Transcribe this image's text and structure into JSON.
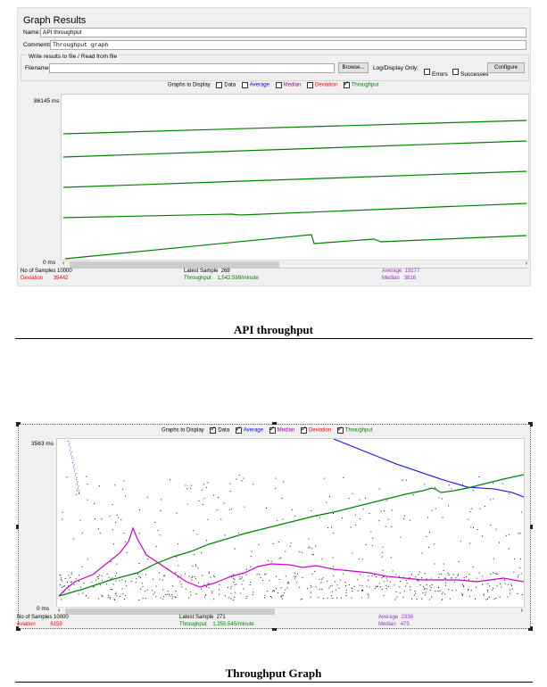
{
  "figure1": {
    "panel_title": "Graph Results",
    "name_label": "Name:",
    "name_value": "API throughput",
    "comments_label": "Comments:",
    "comments_value": "Throughput graph",
    "write_results_label": "Write results to file / Read from file",
    "filename_label": "Filename",
    "filename_value": "",
    "browse_button": "Browse...",
    "log_display_label": "Log/Display Only:",
    "errors_label": "Errors",
    "successes_label": "Successes",
    "configure_button": "Configure",
    "graphs_to_display_label": "Graphs to Display",
    "legend": [
      {
        "label": "Data",
        "checked": false,
        "color": "#000000"
      },
      {
        "label": "Average",
        "checked": false,
        "color": "#0000ff"
      },
      {
        "label": "Median",
        "checked": false,
        "color": "#990099"
      },
      {
        "label": "Deviation",
        "checked": false,
        "color": "#ff0000"
      },
      {
        "label": "Throughput",
        "checked": true,
        "color": "#008000"
      }
    ],
    "y_max_label": "86145  ms",
    "y_min_label": "0  ms",
    "stats": {
      "samples_label": "No of Samples",
      "samples_value": "10000",
      "deviation_label": "Deviation",
      "deviation_value": "35442",
      "latest_label": "Latest Sample",
      "latest_value": "268",
      "throughput_label": "Throughput",
      "throughput_value": "1,542.599/minute",
      "average_label": "Average",
      "average_value": "19277",
      "median_label": "Median",
      "median_value": "3816"
    },
    "caption": "API throughput"
  },
  "figure2": {
    "graphs_to_display_label": "Graphs to Display",
    "legend": [
      {
        "label": "Data",
        "checked": true,
        "color": "#000000"
      },
      {
        "label": "Average",
        "checked": true,
        "color": "#0000ff"
      },
      {
        "label": "Median",
        "checked": true,
        "color": "#990099"
      },
      {
        "label": "Deviation",
        "checked": true,
        "color": "#ff0000"
      },
      {
        "label": "Throughput",
        "checked": true,
        "color": "#008000"
      }
    ],
    "y_max_label": "3563  ms",
    "y_min_label": "0  ms",
    "stats": {
      "samples_label": "No of Samples",
      "samples_value": "10000",
      "deviation_label": "eviation",
      "deviation_value": "6159",
      "latest_label": "Latest Sample",
      "latest_value": "271",
      "throughput_label": "Throughput",
      "throughput_value": "1,255.545/minute",
      "average_label": "Average",
      "average_value": "2336",
      "median_label": "Median",
      "median_value": "473"
    },
    "caption": "Throughput Graph"
  },
  "colors": {
    "throughput": "#008000",
    "average": "#0000ff",
    "median": "#cc00cc",
    "deviation": "#ff0000",
    "data": "#000000"
  }
}
